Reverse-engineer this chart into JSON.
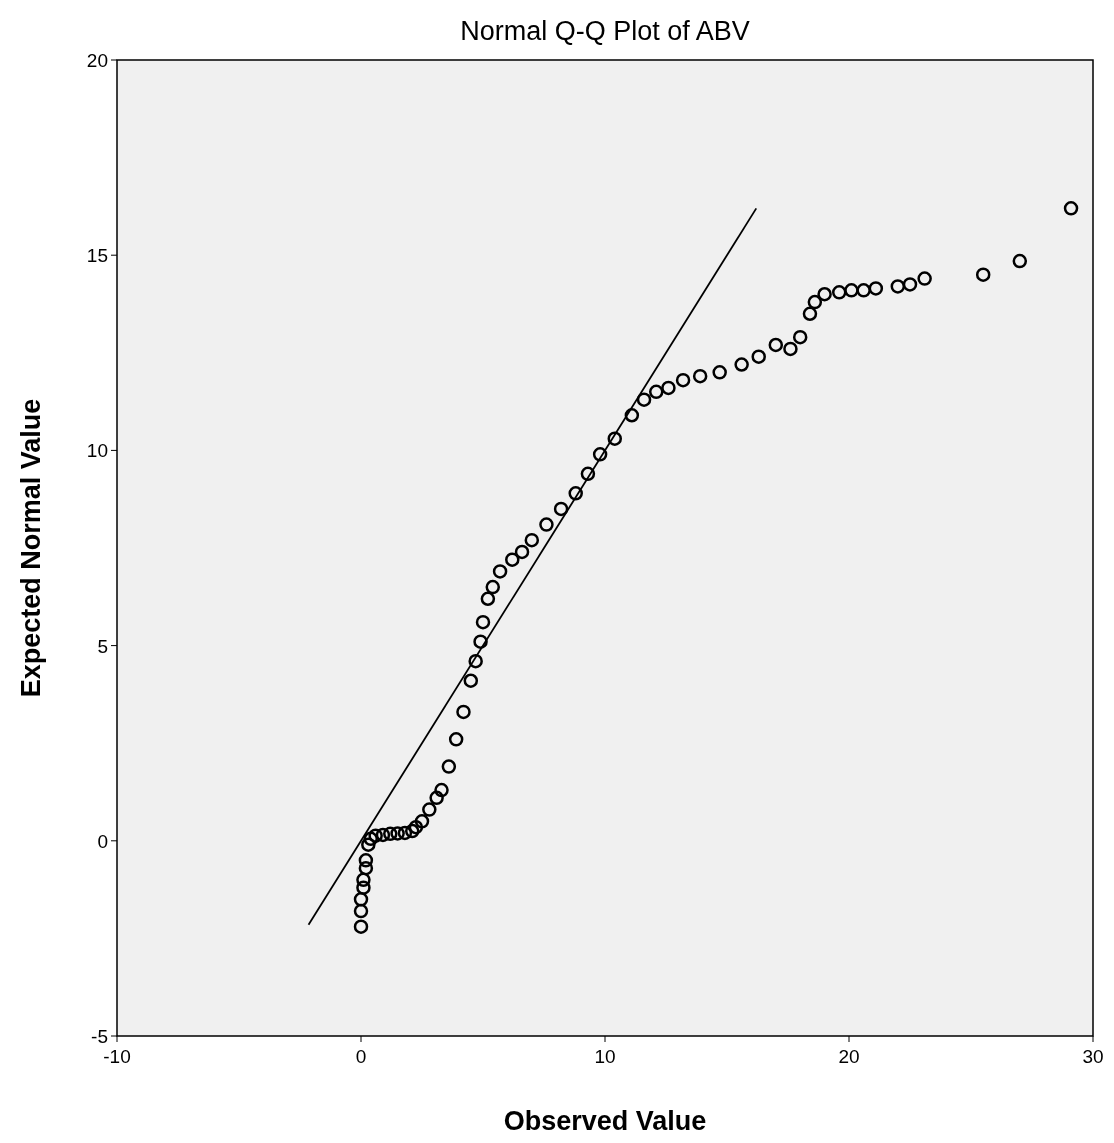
{
  "chart_data": {
    "type": "scatter",
    "title": "Normal Q-Q Plot of ABV",
    "xlabel": "Observed Value",
    "ylabel": "Expected Normal Value",
    "xlim": [
      -10,
      30
    ],
    "ylim": [
      -5,
      20
    ],
    "xticks": [
      -10,
      0,
      10,
      20,
      30
    ],
    "yticks": [
      -5,
      0,
      5,
      10,
      15,
      20
    ],
    "grid": false,
    "series": [
      {
        "color": "#000000",
        "marker": "circle",
        "x": [
          0,
          0,
          0,
          0.1,
          0.1,
          0.2,
          0.2,
          0.3,
          0.4,
          0.6,
          0.9,
          1.2,
          1.5,
          1.8,
          2.1,
          2.25,
          2.5,
          2.8,
          3.1,
          3.3,
          3.6,
          3.9,
          4.2,
          4.5,
          4.7,
          4.9,
          5,
          5.2,
          5.4,
          5.7,
          6.2,
          6.6,
          7,
          7.6,
          8.2,
          8.8,
          9.3,
          9.8,
          10.4,
          11.1,
          11.6,
          12.1,
          12.6,
          13.2,
          13.9,
          14.7,
          15.6,
          16.3,
          17,
          17.6,
          18,
          18.4,
          18.6,
          19,
          19.6,
          20.1,
          20.6,
          21.1,
          22,
          22.5,
          23.1,
          25.5,
          27,
          29.1
        ],
        "values": [
          -2.2,
          -1.8,
          -1.5,
          -1.2,
          -1,
          -0.7,
          -0.5,
          -0.1,
          0.05,
          0.13,
          0.15,
          0.18,
          0.19,
          0.2,
          0.25,
          0.35,
          0.5,
          0.8,
          1.1,
          1.3,
          1.9,
          2.6,
          3.3,
          4.1,
          4.6,
          5.1,
          5.6,
          6.2,
          6.5,
          6.9,
          7.2,
          7.4,
          7.7,
          8.1,
          8.5,
          8.9,
          9.4,
          9.9,
          10.3,
          10.9,
          11.3,
          11.5,
          11.6,
          11.8,
          11.9,
          12,
          12.2,
          12.4,
          12.7,
          12.6,
          12.9,
          13.5,
          13.8,
          14,
          14.05,
          14.1,
          14.1,
          14.15,
          14.2,
          14.25,
          14.4,
          14.5,
          14.85,
          16.2
        ]
      },
      {
        "type": "line",
        "color": "#000000",
        "x": [
          -2.15,
          16.2
        ],
        "values": [
          -2.15,
          16.2
        ]
      }
    ]
  }
}
